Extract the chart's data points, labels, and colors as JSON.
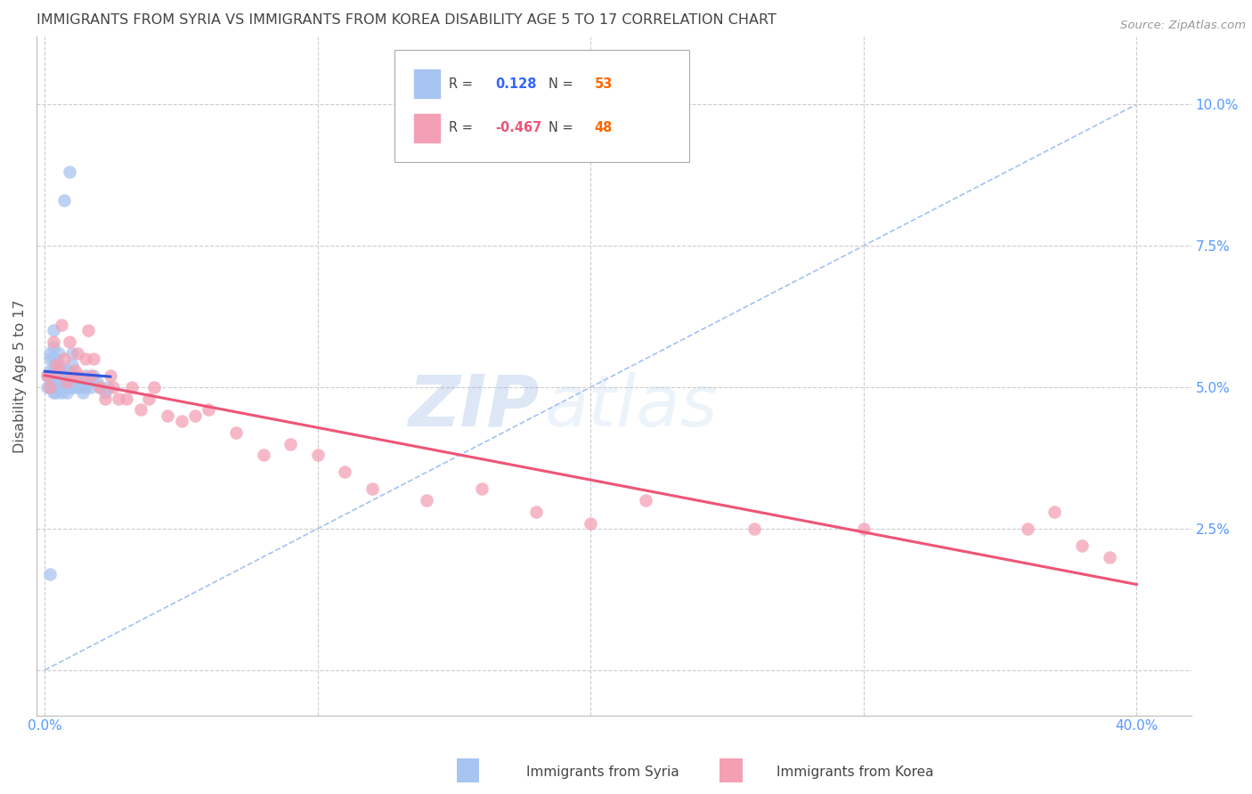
{
  "title": "IMMIGRANTS FROM SYRIA VS IMMIGRANTS FROM KOREA DISABILITY AGE 5 TO 17 CORRELATION CHART",
  "source": "Source: ZipAtlas.com",
  "ylabel": "Disability Age 5 to 17",
  "ytick_vals": [
    0.0,
    0.025,
    0.05,
    0.075,
    0.1
  ],
  "ytick_labels": [
    "",
    "2.5%",
    "5.0%",
    "7.5%",
    "10.0%"
  ],
  "xtick_vals": [
    0.0,
    0.1,
    0.2,
    0.3,
    0.4
  ],
  "xtick_labels": [
    "0.0%",
    "",
    "",
    "",
    "40.0%"
  ],
  "xlim": [
    -0.003,
    0.42
  ],
  "ylim": [
    -0.008,
    0.112
  ],
  "r_syria": 0.128,
  "n_syria": 53,
  "r_korea": -0.467,
  "n_korea": 48,
  "syria_color": "#a8c4f0",
  "korea_color": "#f4a0b4",
  "syria_line_color": "#3355dd",
  "korea_line_color": "#ee5577",
  "dashed_line_color": "#99bbee",
  "background_color": "#ffffff",
  "grid_color": "#cccccc",
  "title_color": "#444444",
  "axis_label_color": "#5599ff",
  "legend_r_syria_color": "#3366ff",
  "legend_r_korea_color": "#ee5577",
  "legend_n_color": "#ff6600",
  "syria_x": [
    0.001,
    0.001,
    0.002,
    0.002,
    0.002,
    0.002,
    0.002,
    0.003,
    0.003,
    0.003,
    0.003,
    0.003,
    0.003,
    0.004,
    0.004,
    0.004,
    0.004,
    0.005,
    0.005,
    0.005,
    0.005,
    0.006,
    0.006,
    0.006,
    0.007,
    0.007,
    0.008,
    0.008,
    0.008,
    0.009,
    0.009,
    0.01,
    0.01,
    0.01,
    0.01,
    0.011,
    0.011,
    0.012,
    0.013,
    0.014,
    0.014,
    0.015,
    0.015,
    0.016,
    0.017,
    0.018,
    0.019,
    0.02,
    0.022,
    0.023,
    0.007,
    0.009,
    0.002
  ],
  "syria_y": [
    0.05,
    0.052,
    0.05,
    0.052,
    0.053,
    0.055,
    0.056,
    0.049,
    0.051,
    0.053,
    0.055,
    0.057,
    0.06,
    0.049,
    0.051,
    0.053,
    0.055,
    0.05,
    0.052,
    0.054,
    0.056,
    0.049,
    0.051,
    0.053,
    0.05,
    0.052,
    0.049,
    0.051,
    0.053,
    0.05,
    0.052,
    0.05,
    0.052,
    0.054,
    0.056,
    0.05,
    0.052,
    0.051,
    0.05,
    0.049,
    0.051,
    0.05,
    0.052,
    0.051,
    0.05,
    0.052,
    0.051,
    0.05,
    0.049,
    0.05,
    0.083,
    0.088,
    0.017
  ],
  "korea_x": [
    0.001,
    0.002,
    0.003,
    0.004,
    0.005,
    0.006,
    0.007,
    0.008,
    0.009,
    0.01,
    0.011,
    0.012,
    0.013,
    0.015,
    0.016,
    0.017,
    0.018,
    0.02,
    0.022,
    0.024,
    0.025,
    0.027,
    0.03,
    0.032,
    0.035,
    0.038,
    0.04,
    0.045,
    0.05,
    0.055,
    0.06,
    0.07,
    0.08,
    0.09,
    0.1,
    0.11,
    0.12,
    0.14,
    0.16,
    0.18,
    0.2,
    0.22,
    0.26,
    0.3,
    0.36,
    0.37,
    0.38,
    0.39
  ],
  "korea_y": [
    0.052,
    0.05,
    0.058,
    0.054,
    0.053,
    0.061,
    0.055,
    0.051,
    0.058,
    0.052,
    0.053,
    0.056,
    0.052,
    0.055,
    0.06,
    0.052,
    0.055,
    0.05,
    0.048,
    0.052,
    0.05,
    0.048,
    0.048,
    0.05,
    0.046,
    0.048,
    0.05,
    0.045,
    0.044,
    0.045,
    0.046,
    0.042,
    0.038,
    0.04,
    0.038,
    0.035,
    0.032,
    0.03,
    0.032,
    0.028,
    0.026,
    0.03,
    0.025,
    0.025,
    0.025,
    0.028,
    0.022,
    0.02
  ],
  "watermark_zip": "ZIP",
  "watermark_atlas": "atlas",
  "title_fontsize": 11.5,
  "axis_tick_fontsize": 11,
  "source_fontsize": 9.5
}
